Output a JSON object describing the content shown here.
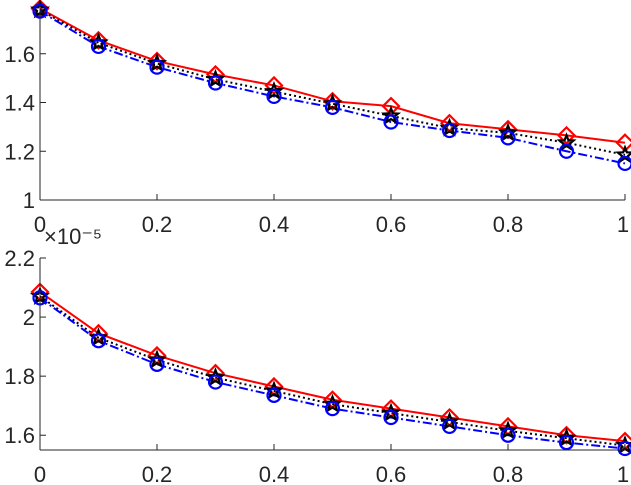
{
  "chart_data": [
    {
      "type": "line",
      "name": "top",
      "x": [
        0,
        0.1,
        0.2,
        0.3,
        0.4,
        0.5,
        0.6,
        0.7,
        0.8,
        0.9,
        1.0
      ],
      "xlim": [
        0,
        1
      ],
      "ylim": [
        1,
        1.8
      ],
      "x_ticks": [
        0,
        0.2,
        0.4,
        0.6,
        0.8,
        1
      ],
      "x_tick_labels": [
        "0",
        "0.2",
        "0.4",
        "0.6",
        "0.8",
        "1"
      ],
      "y_ticks": [
        1,
        1.2,
        1.4,
        1.6
      ],
      "y_tick_labels": [
        "1",
        "1.2",
        "1.4",
        "1.6"
      ],
      "grid": false,
      "series": [
        {
          "name": "red-diamond",
          "color": "#ff0000",
          "style": "solid",
          "marker": "diamond",
          "values": [
            1.785,
            1.655,
            1.57,
            1.515,
            1.47,
            1.405,
            1.385,
            1.315,
            1.29,
            1.265,
            1.235
          ]
        },
        {
          "name": "black-star",
          "color": "#000000",
          "style": "dotted",
          "marker": "star",
          "values": [
            1.78,
            1.645,
            1.56,
            1.495,
            1.445,
            1.395,
            1.345,
            1.295,
            1.275,
            1.235,
            1.185
          ]
        },
        {
          "name": "blue-circle",
          "color": "#0000ff",
          "style": "dashdot",
          "marker": "circle",
          "values": [
            1.775,
            1.63,
            1.545,
            1.48,
            1.425,
            1.38,
            1.32,
            1.285,
            1.255,
            1.2,
            1.15
          ]
        }
      ]
    },
    {
      "type": "line",
      "name": "bottom",
      "x": [
        0,
        0.1,
        0.2,
        0.3,
        0.4,
        0.5,
        0.6,
        0.7,
        0.8,
        0.9,
        1.0
      ],
      "xlim": [
        0,
        1
      ],
      "ylim": [
        1.55,
        2.2
      ],
      "exponent_label": "×10⁻⁵",
      "x_ticks": [
        0,
        0.2,
        0.4,
        0.6,
        0.8,
        1
      ],
      "x_tick_labels": [
        "0",
        "0.2",
        "0.4",
        "0.6",
        "0.8",
        "1"
      ],
      "y_ticks": [
        1.6,
        1.8,
        2,
        2.2
      ],
      "y_tick_labels": [
        "1.6",
        "1.8",
        "2",
        "2.2"
      ],
      "grid": false,
      "series": [
        {
          "name": "red-diamond",
          "color": "#ff0000",
          "style": "solid",
          "marker": "diamond",
          "values": [
            2.085,
            1.945,
            1.87,
            1.81,
            1.765,
            1.72,
            1.69,
            1.66,
            1.63,
            1.6,
            1.58
          ]
        },
        {
          "name": "black-star",
          "color": "#000000",
          "style": "dotted",
          "marker": "star",
          "values": [
            2.07,
            1.93,
            1.855,
            1.795,
            1.75,
            1.705,
            1.675,
            1.645,
            1.615,
            1.59,
            1.565
          ]
        },
        {
          "name": "blue-circle",
          "color": "#0000ff",
          "style": "dashdot",
          "marker": "circle",
          "values": [
            2.065,
            1.92,
            1.84,
            1.78,
            1.735,
            1.69,
            1.66,
            1.63,
            1.6,
            1.575,
            1.555
          ]
        }
      ]
    }
  ]
}
